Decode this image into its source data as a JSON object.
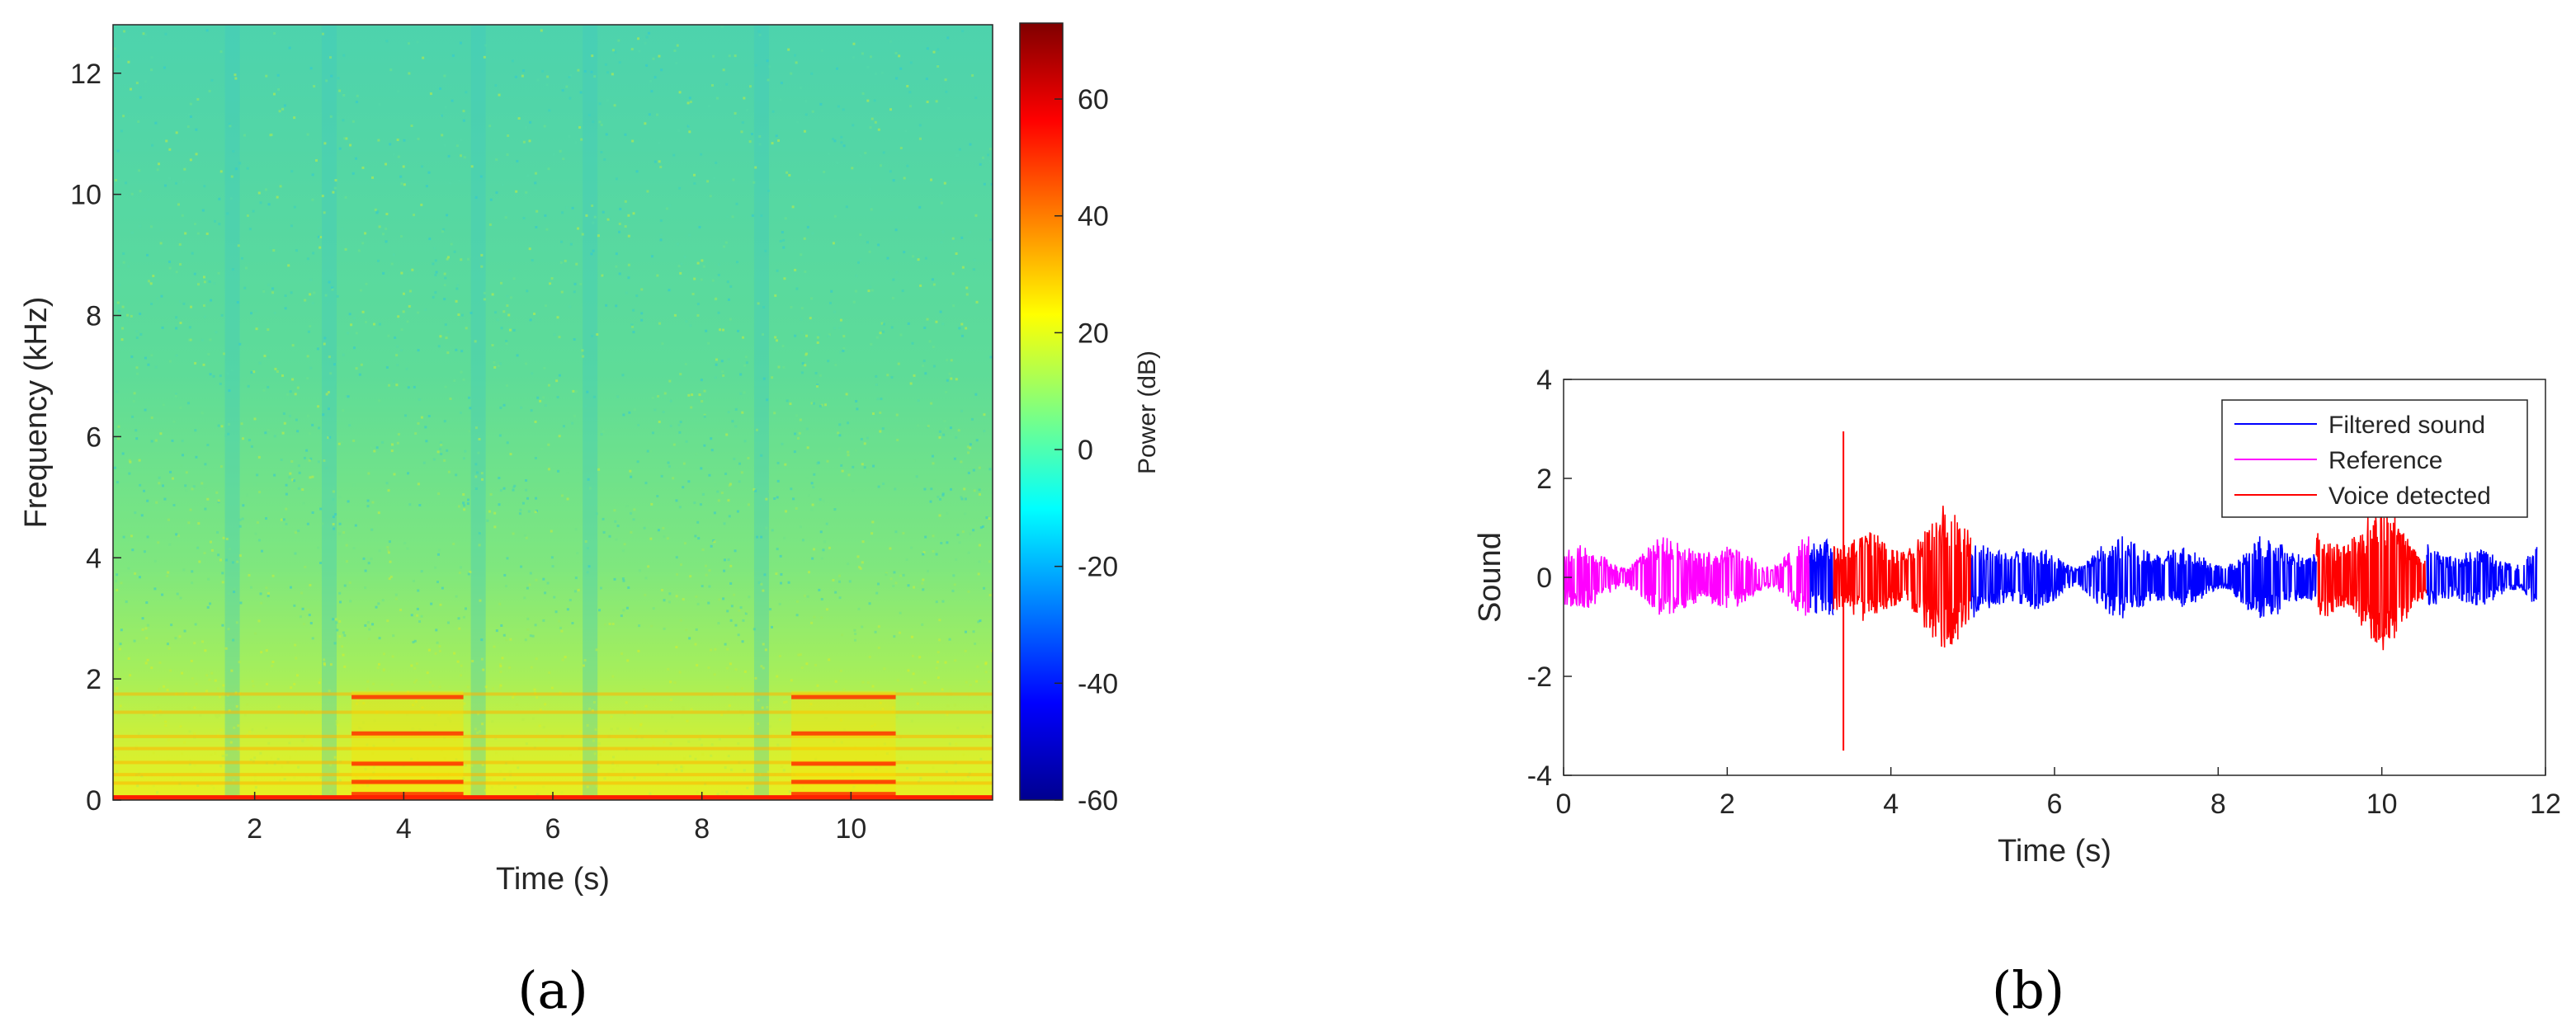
{
  "panels": {
    "a": {
      "label": "(a)"
    },
    "b": {
      "label": "(b)"
    }
  },
  "chart_data": [
    {
      "type": "heatmap",
      "panel": "a",
      "title": "",
      "xlabel": "Time (s)",
      "ylabel": "Frequency (kHz)",
      "xlim": [
        0.1,
        11.9
      ],
      "ylim": [
        0,
        12.8
      ],
      "xticks": [
        2,
        4,
        6,
        8,
        10
      ],
      "yticks": [
        0,
        2,
        4,
        6,
        8,
        10,
        12
      ],
      "colorbar": {
        "label": "Power (dB)",
        "range": [
          -60,
          73
        ],
        "ticks": [
          -60,
          -40,
          -20,
          0,
          20,
          40,
          60
        ],
        "colormap": "jet"
      },
      "description_features": {
        "background_level_db": -5,
        "low_frequency_level_db": 25,
        "strong_band_intervals_s": [
          [
            3.3,
            4.8
          ],
          [
            9.2,
            10.6
          ]
        ],
        "darker_vertical_stripes_s": [
          1.7,
          3.0,
          5.0,
          6.5,
          8.8
        ]
      }
    },
    {
      "type": "line",
      "panel": "b",
      "title": "",
      "xlabel": "Time (s)",
      "ylabel": "Sound",
      "xlim": [
        0,
        12
      ],
      "ylim": [
        -4,
        4
      ],
      "xticks": [
        0,
        2,
        4,
        6,
        8,
        10,
        12
      ],
      "yticks": [
        -4,
        -2,
        0,
        2,
        4
      ],
      "legend_position": "top-right",
      "series": [
        {
          "name": "Filtered sound",
          "color": "#0000ff",
          "segments_s": [
            [
              3.0,
              3.3
            ],
            [
              4.98,
              9.2
            ],
            [
              10.55,
              11.9
            ]
          ],
          "typical_amplitude": 0.6
        },
        {
          "name": "Reference",
          "color": "#ff00ff",
          "segments_s": [
            [
              0.0,
              3.0
            ]
          ],
          "typical_amplitude": 0.6
        },
        {
          "name": "Voice detected",
          "color": "#ff0000",
          "segments_s": [
            [
              3.3,
              4.98
            ],
            [
              9.2,
              10.55
            ]
          ],
          "typical_amplitude": 1.0,
          "peaks": [
            {
              "x": 3.42,
              "y": 2.95
            },
            {
              "x": 3.42,
              "y": -3.5
            }
          ]
        }
      ]
    }
  ]
}
